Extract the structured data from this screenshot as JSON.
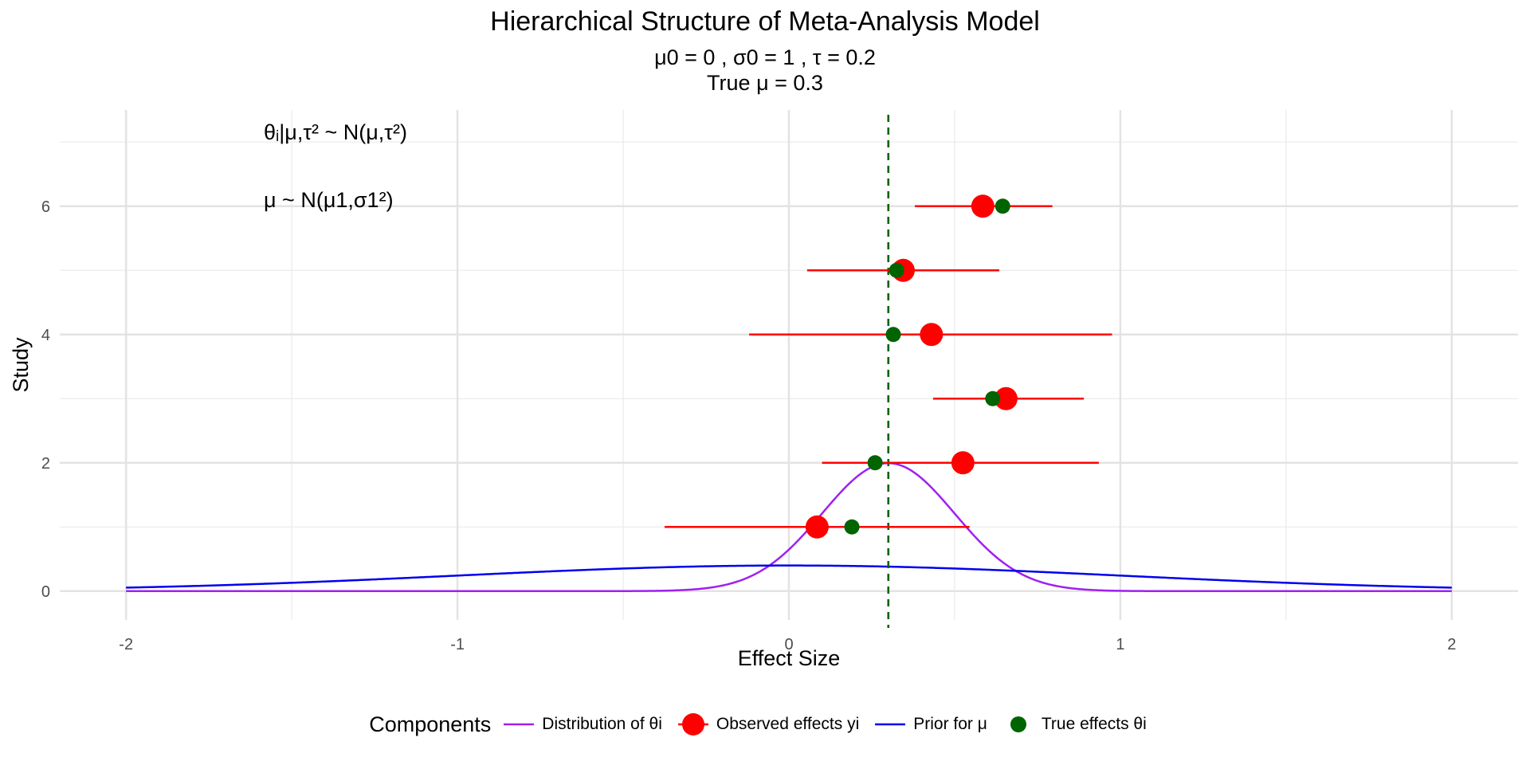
{
  "chart_data": {
    "type": "scatter",
    "title": "Hierarchical Structure of Meta-Analysis Model",
    "subtitle_line1": "μ0 = 0 , σ0 = 1 , τ = 0.2",
    "subtitle_line2": "True μ = 0.3",
    "xlabel": "Effect Size",
    "ylabel": "Study",
    "xlim": [
      -2.2,
      2.2
    ],
    "ylim": [
      -0.45,
      7.5
    ],
    "x_ticks": [
      -2,
      -1,
      0,
      1,
      2
    ],
    "x_tick_labels": [
      "-2",
      "-1",
      "0",
      "1",
      "2"
    ],
    "y_ticks": [
      0,
      2,
      4,
      6
    ],
    "y_tick_labels": [
      "0",
      "2",
      "4",
      "6"
    ],
    "grid": true,
    "true_mu": 0.3,
    "legend_title": "Components",
    "legend_position": "bottom",
    "series": [
      {
        "name": "Distribution of θi",
        "kind": "density-line",
        "color": "#a020f0",
        "mean": 0.3,
        "sd": 0.2
      },
      {
        "name": "Observed effects yi",
        "kind": "point-with-interval",
        "color": "#ff0000",
        "study": [
          1,
          2,
          3,
          4,
          5,
          6
        ],
        "y": [
          0.085,
          0.525,
          0.655,
          0.43,
          0.345,
          0.585
        ],
        "lower": [
          -0.375,
          0.1,
          0.435,
          -0.12,
          0.055,
          0.38
        ],
        "upper": [
          0.545,
          0.935,
          0.89,
          0.975,
          0.635,
          0.795
        ]
      },
      {
        "name": "Prior for μ",
        "kind": "density-line",
        "color": "#0000ee",
        "mean": 0,
        "sd": 1
      },
      {
        "name": "True effects θi",
        "kind": "point",
        "color": "#006400",
        "study": [
          1,
          2,
          3,
          4,
          5,
          6
        ],
        "x": [
          0.19,
          0.26,
          0.615,
          0.315,
          0.325,
          0.645
        ]
      }
    ],
    "annotations": [
      "θᵢ|μ,τ² ~ N(μ,τ²)",
      "μ ~ N(μ1,σ1²)"
    ]
  }
}
